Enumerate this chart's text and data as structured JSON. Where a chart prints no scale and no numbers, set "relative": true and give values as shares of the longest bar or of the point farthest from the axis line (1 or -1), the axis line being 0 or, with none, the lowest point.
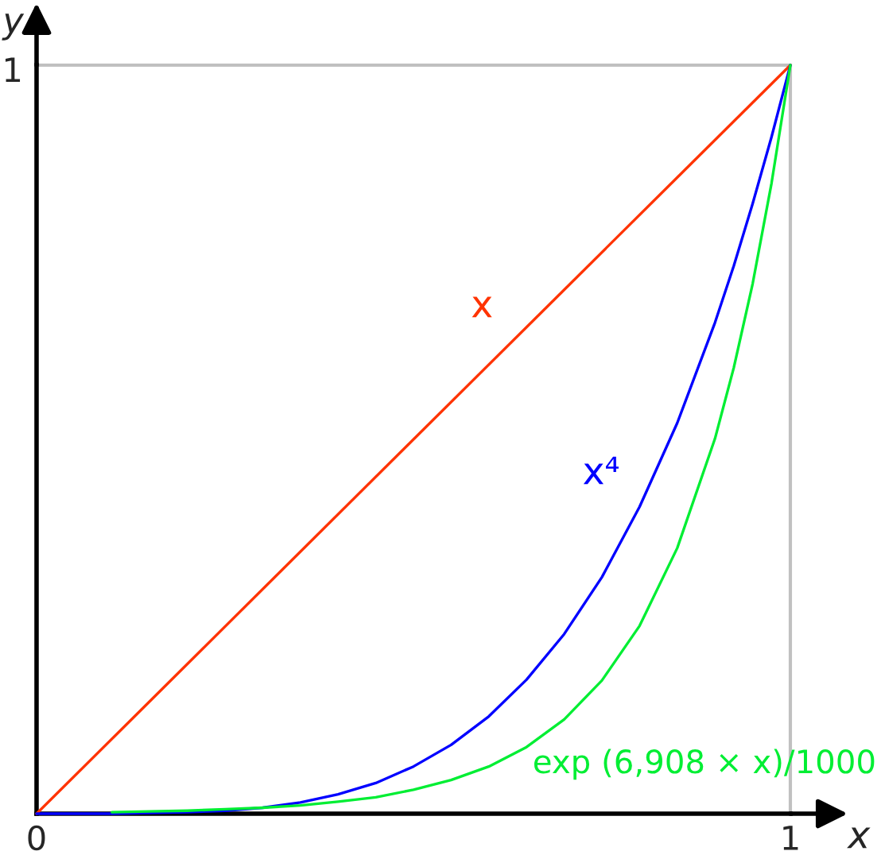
{
  "chart_data": {
    "type": "line",
    "xlabel": "x",
    "ylabel": "y",
    "relative": true,
    "xlim": [
      0,
      1
    ],
    "xticks": [
      0,
      1
    ],
    "line_style": "solid",
    "annotations": [
      "1"
    ],
    "series": [
      {
        "name": "x",
        "color": "#ff3300",
        "x": [
          0,
          1
        ],
        "values": [
          0,
          1
        ]
      },
      {
        "name": "x⁴",
        "color": "#0000ff",
        "x": [
          0,
          0.05,
          0.1,
          0.15,
          0.2,
          0.25,
          0.3,
          0.35,
          0.4,
          0.45,
          0.5,
          0.55,
          0.6,
          0.65,
          0.7,
          0.75,
          0.8,
          0.85,
          0.9,
          0.925,
          0.95,
          0.975,
          1
        ],
        "values": [
          0,
          0,
          0,
          0.001,
          0.002,
          0.004,
          0.008,
          0.015,
          0.026,
          0.041,
          0.063,
          0.092,
          0.13,
          0.179,
          0.24,
          0.316,
          0.41,
          0.522,
          0.656,
          0.732,
          0.815,
          0.904,
          1
        ]
      },
      {
        "name": "exp (6,908 × x)/1000",
        "color": "#00ee33",
        "x": [
          0.1,
          0.15,
          0.2,
          0.25,
          0.3,
          0.35,
          0.4,
          0.45,
          0.5,
          0.55,
          0.6,
          0.65,
          0.7,
          0.75,
          0.8,
          0.85,
          0.9,
          0.925,
          0.95,
          0.975,
          1
        ],
        "values": [
          0.002,
          0.003,
          0.004,
          0.006,
          0.008,
          0.011,
          0.016,
          0.022,
          0.032,
          0.045,
          0.063,
          0.089,
          0.126,
          0.178,
          0.251,
          0.355,
          0.501,
          0.596,
          0.708,
          0.842,
          1
        ]
      }
    ]
  }
}
